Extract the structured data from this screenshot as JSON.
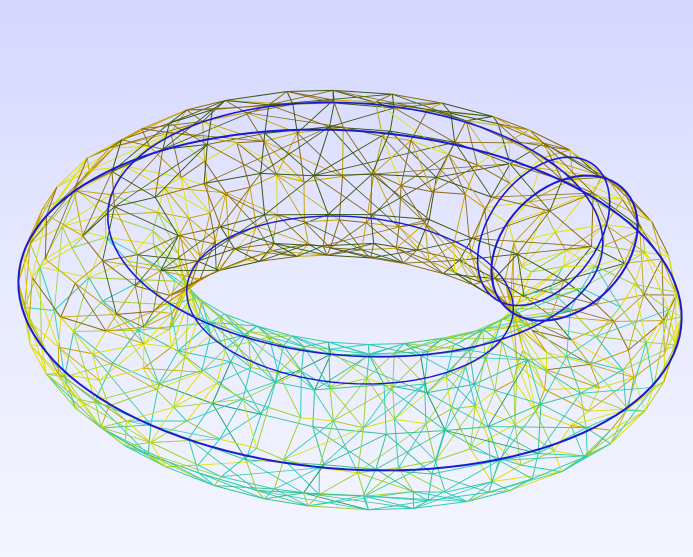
{
  "viewer": {
    "model": "torus",
    "render_mode": "wireframe",
    "background": {
      "top": "#d4d6ff",
      "bottom": "#f4f5ff"
    }
  },
  "colors": {
    "outline": "#1a1ad0",
    "palette": [
      "#1a9a5a",
      "#33c48a",
      "#2ecdb4",
      "#9fd12a",
      "#e0e000",
      "#c8a400",
      "#8a6a10",
      "#3b5a10"
    ]
  }
}
